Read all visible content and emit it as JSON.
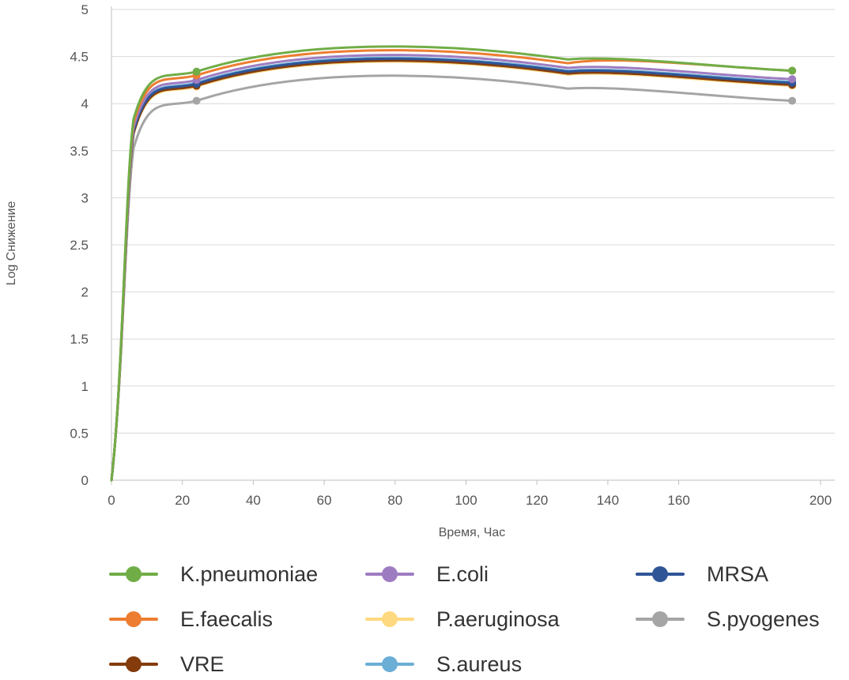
{
  "chart_data": {
    "type": "line",
    "title": "",
    "xlabel": "Время, Час",
    "ylabel": "Log Снижение",
    "xlim": [
      0,
      200
    ],
    "ylim": [
      0,
      5
    ],
    "x_ticks": [
      "0",
      "20",
      "40",
      "60",
      "80",
      "100",
      "120",
      "140",
      "160",
      "200"
    ],
    "x_tick_values": [
      0,
      20,
      40,
      60,
      80,
      100,
      120,
      140,
      160,
      200
    ],
    "y_ticks": [
      "0",
      "0.5",
      "1",
      "1.5",
      "2",
      "2.5",
      "3",
      "3.5",
      "4",
      "4.5",
      "5"
    ],
    "grid": "horizontal",
    "legend_position": "bottom",
    "smoothed": true,
    "series": [
      {
        "name": "K.pneumoniae",
        "color": "#70AD47",
        "x": [
          0,
          24,
          192
        ],
        "y": [
          0,
          4.34,
          4.35
        ]
      },
      {
        "name": "E.coli",
        "color": "#9E7CC1",
        "x": [
          0,
          24,
          192
        ],
        "y": [
          0,
          4.25,
          4.26
        ]
      },
      {
        "name": "MRSA",
        "color": "#2F5597",
        "x": [
          0,
          24,
          192
        ],
        "y": [
          0,
          4.21,
          4.22
        ]
      },
      {
        "name": "E.faecalis",
        "color": "#ED7D31",
        "x": [
          0,
          24,
          192
        ],
        "y": [
          0,
          4.3,
          4.35
        ]
      },
      {
        "name": "P.aeruginosa",
        "color": "#FFD97F",
        "x": [
          0,
          24,
          192
        ],
        "y": [
          0,
          4.18,
          4.19
        ]
      },
      {
        "name": "S.pyogenes",
        "color": "#A5A5A5",
        "x": [
          0,
          24,
          192
        ],
        "y": [
          0,
          4.03,
          4.03
        ]
      },
      {
        "name": "VRE",
        "color": "#843C0C",
        "x": [
          0,
          24,
          192
        ],
        "y": [
          0,
          4.19,
          4.2
        ]
      },
      {
        "name": "S.aureus",
        "color": "#6BAED6",
        "x": [
          0,
          24,
          192
        ],
        "y": [
          0,
          4.22,
          4.23
        ]
      }
    ]
  }
}
